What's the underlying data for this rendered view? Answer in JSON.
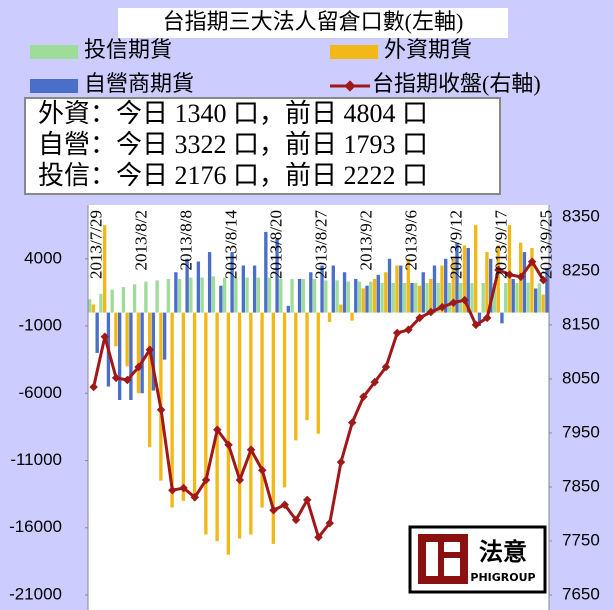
{
  "chart_data": {
    "type": "bar",
    "title": "台指期三大法人留倉口數(左軸)",
    "annotations": [
      "外資：今日 1340 口，前日 4804 口",
      "自營：今日 3322 口，前日 1793 口",
      "投信：今日 2176 口，前日 2222 口"
    ],
    "logo": {
      "name": "法意",
      "sub": "PHIGROUP"
    },
    "categories": [
      "2013/7/29",
      null,
      null,
      null,
      "2013/8/2",
      null,
      null,
      null,
      "2013/8/8",
      null,
      null,
      null,
      "2013/8/14",
      null,
      null,
      null,
      "2013/8/20",
      null,
      null,
      null,
      "2013/8/27",
      null,
      null,
      null,
      "2013/9/2",
      null,
      null,
      null,
      "2013/9/6",
      null,
      null,
      null,
      "2013/9/12",
      null,
      null,
      null,
      "2013/9/17",
      null,
      null,
      null,
      "2013/9/25"
    ],
    "series": [
      {
        "name": "投信期貨",
        "color": "#9fdc9a",
        "values": [
          1000,
          1400,
          1700,
          1900,
          2100,
          2300,
          2400,
          2500,
          2500,
          2600,
          2600,
          2700,
          2600,
          2600,
          2600,
          2600,
          2600,
          2500,
          2500,
          2500,
          2500,
          2400,
          2400,
          2300,
          2300,
          2300,
          2200,
          2200,
          2200,
          2200,
          2200,
          2200,
          2200,
          2200,
          2200,
          2200,
          2200,
          2200,
          2200,
          2222,
          2176
        ]
      },
      {
        "name": "外資期貨",
        "color": "#f2b817",
        "values": [
          600,
          6500,
          -2500,
          -4000,
          -6000,
          -10000,
          -12500,
          -14500,
          -14000,
          -14000,
          -16500,
          -17000,
          -18000,
          -16800,
          -16500,
          -14500,
          -17200,
          -13000,
          -9500,
          -8000,
          -9000,
          -700,
          600,
          -600,
          1800,
          2500,
          3000,
          3500,
          4000,
          2000,
          2500,
          3500,
          4000,
          5000,
          6500,
          4500,
          5000,
          6500,
          5200,
          4804,
          1340
        ]
      },
      {
        "name": "自營商期貨",
        "color": "#4a6fc8",
        "values": [
          -3000,
          -5500,
          -6500,
          -6500,
          -6000,
          -5800,
          -3500,
          3000,
          4000,
          3800,
          4500,
          2000,
          4500,
          3500,
          3500,
          6000,
          5500,
          500,
          2500,
          3000,
          3500,
          3500,
          3000,
          2500,
          2000,
          2800,
          4000,
          3500,
          2200,
          3000,
          3500,
          4000,
          5200,
          4800,
          -1000,
          4000,
          -800,
          2500,
          4500,
          1793,
          3322
        ]
      },
      {
        "name": "台指期收盤(右軸)",
        "color": "#a01818",
        "type": "line",
        "axis": "y2",
        "values": [
          8035,
          8128,
          8052,
          8048,
          8072,
          8104,
          7993,
          7844,
          7848,
          7831,
          7863,
          7956,
          7928,
          7863,
          7919,
          7881,
          7807,
          7817,
          7789,
          7826,
          7757,
          7783,
          7896,
          7969,
          8017,
          8044,
          8072,
          8135,
          8141,
          8163,
          8174,
          8183,
          8191,
          8196,
          8150,
          8163,
          8252,
          8243,
          8239,
          8267,
          8233
        ]
      }
    ],
    "ylim": [
      -21000,
      8000
    ],
    "yticks": [
      -21000,
      -16000,
      -11000,
      -6000,
      -1000,
      4000
    ],
    "y2lim": [
      7650,
      8372
    ],
    "y2ticks": [
      7650,
      7750,
      7850,
      7950,
      8050,
      8150,
      8250,
      8350
    ],
    "grid": false
  }
}
